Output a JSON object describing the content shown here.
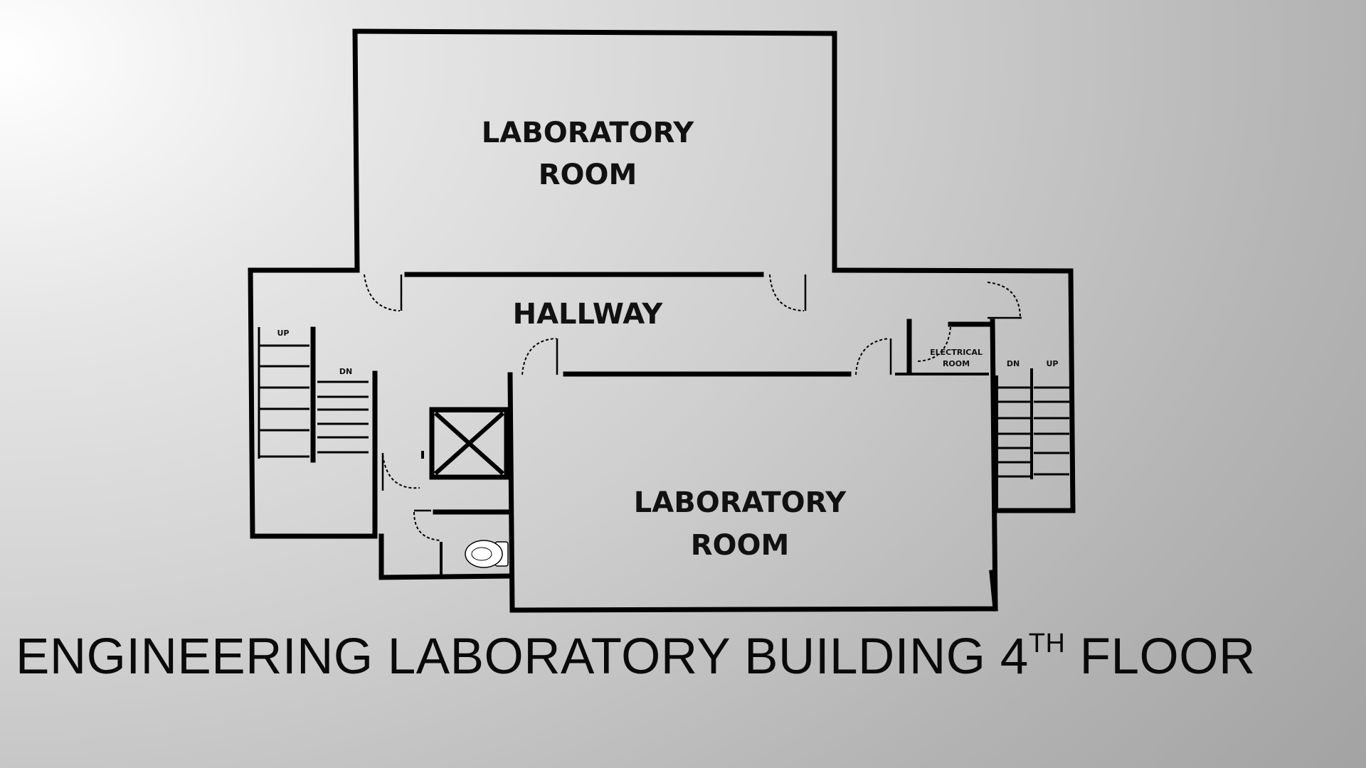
{
  "rooms": {
    "lab_top_line1": "LABORATORY",
    "lab_top_line2": "ROOM",
    "hallway": "HALLWAY",
    "lab_bottom_line1": "LABORATORY",
    "lab_bottom_line2": "ROOM",
    "electrical_line1": "ELECTRICAL",
    "electrical_line2": "ROOM"
  },
  "stairs": {
    "left_up": "UP",
    "left_dn": "DN",
    "right_dn": "DN",
    "right_up": "UP"
  },
  "title": {
    "main": "ENGINEERING LABORATORY BUILDING 4",
    "superscript": "TH",
    "suffix": " FLOOR"
  },
  "icons": [
    "toilet-icon",
    "elevator-icon",
    "door-icon",
    "stair-icon"
  ]
}
